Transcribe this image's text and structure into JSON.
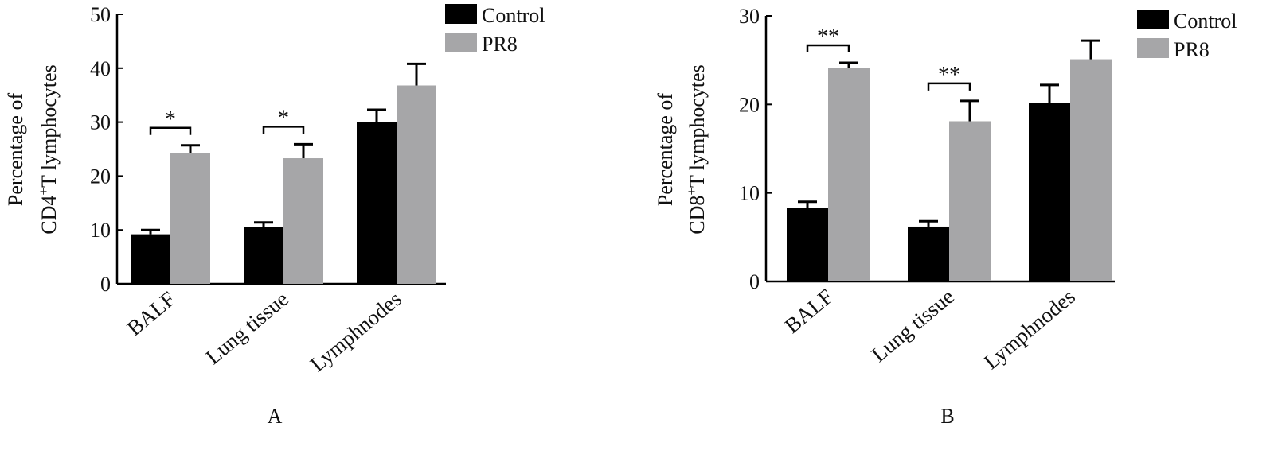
{
  "chart_data": [
    {
      "type": "bar",
      "panel_label": "A",
      "ylabel_line1": "Percentage of",
      "ylabel_line2_pre": "CD4",
      "ylabel_sup": "+",
      "ylabel_line2_post": "T lymphocytes",
      "ylim": [
        0,
        50
      ],
      "yticks": [
        0,
        10,
        20,
        30,
        40,
        50
      ],
      "categories": [
        "BALF",
        "Lung tissue",
        "Lymphnodes"
      ],
      "series": [
        {
          "name": "Control",
          "color": "#000000",
          "values": [
            9.2,
            10.5,
            30.0
          ],
          "errors": [
            0.8,
            0.9,
            2.3
          ]
        },
        {
          "name": "PR8",
          "color": "#a6a6a8",
          "values": [
            24.2,
            23.3,
            36.8
          ],
          "errors": [
            1.5,
            2.6,
            4.0
          ]
        }
      ],
      "significance": [
        {
          "category": "BALF",
          "label": "*"
        },
        {
          "category": "Lung tissue",
          "label": "*"
        }
      ],
      "legend": {
        "position": "top-right",
        "labels": [
          "Control",
          "PR8"
        ]
      }
    },
    {
      "type": "bar",
      "panel_label": "B",
      "ylabel_line1": "Percentage of",
      "ylabel_line2_pre": "CD8",
      "ylabel_sup": "+",
      "ylabel_line2_post": "T lymphocytes",
      "ylim": [
        0,
        30
      ],
      "yticks": [
        0,
        10,
        20,
        30
      ],
      "categories": [
        "BALF",
        "Lung tissue",
        "Lymphnodes"
      ],
      "series": [
        {
          "name": "Control",
          "color": "#000000",
          "values": [
            8.3,
            6.2,
            20.2
          ],
          "errors": [
            0.7,
            0.6,
            2.0
          ]
        },
        {
          "name": "PR8",
          "color": "#a6a6a8",
          "values": [
            24.1,
            18.1,
            25.1
          ],
          "errors": [
            0.6,
            2.3,
            2.1
          ]
        }
      ],
      "significance": [
        {
          "category": "BALF",
          "label": "**"
        },
        {
          "category": "Lung tissue",
          "label": "**"
        }
      ],
      "legend": {
        "position": "top-right",
        "labels": [
          "Control",
          "PR8"
        ]
      }
    }
  ]
}
